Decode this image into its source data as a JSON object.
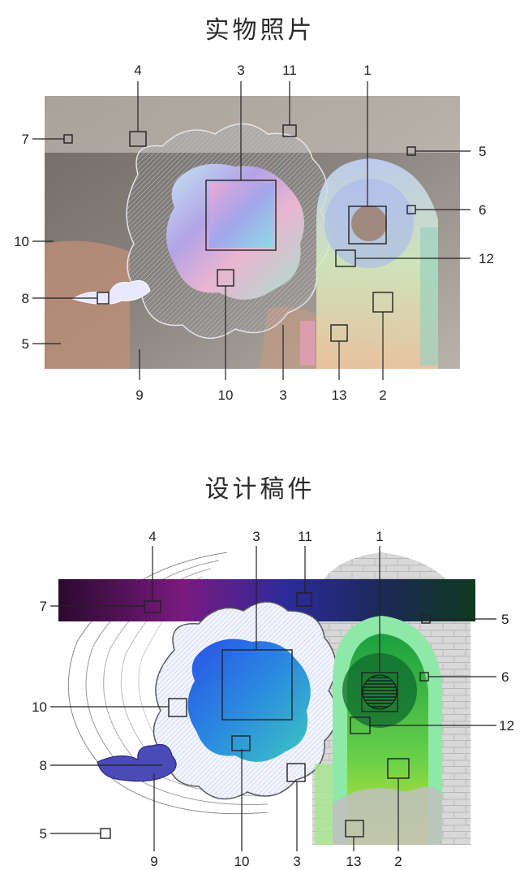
{
  "titles": {
    "top": "实物照片",
    "bottom": "设计稿件"
  },
  "top_labels": {
    "l1": "1",
    "l2": "2",
    "l3a": "3",
    "l3b": "3",
    "l4": "4",
    "l5a": "5",
    "l5b": "5",
    "l6": "6",
    "l7": "7",
    "l8": "8",
    "l9": "9",
    "l10a": "10",
    "l10b": "10",
    "l11": "11",
    "l12": "12",
    "l13": "13"
  },
  "bottom_labels": {
    "l1": "1",
    "l2": "2",
    "l3a": "3",
    "l3b": "3",
    "l4": "4",
    "l5a": "5",
    "l5b": "5",
    "l6": "6",
    "l7": "7",
    "l8": "8",
    "l9": "9",
    "l10a": "10",
    "l10b": "10",
    "l11": "11",
    "l12": "12",
    "l13": "13"
  }
}
